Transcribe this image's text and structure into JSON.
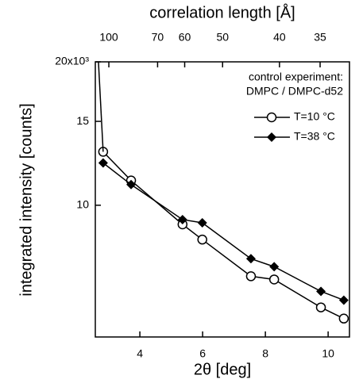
{
  "chart_data": {
    "type": "line",
    "title": "correlation length  [Å]",
    "x_label": "2θ [deg]",
    "y_label": "integrated intensity  [counts]",
    "legend_title": [
      "control experiment:",
      "DMPC / DMPC-d52"
    ],
    "legend": "upper right",
    "xlim": [
      2.58,
      10.68
    ],
    "xticks": [
      4,
      6,
      8,
      10
    ],
    "x2lim": [
      113.5,
      32.1
    ],
    "x2scale": "reciprocal",
    "x2ticks": [
      100,
      70,
      60,
      50,
      40,
      35
    ],
    "ylim": [
      5290,
      20000
    ],
    "yscale": "log",
    "yticks": [
      {
        "value": 10000,
        "label": "10"
      },
      {
        "value": 15000,
        "label": "15"
      },
      {
        "value": 20000,
        "label": "20x10³"
      }
    ],
    "series": [
      {
        "name": "T=10 °C",
        "color": "#000000",
        "marker": "circle",
        "x": [
          2.83,
          3.72,
          5.36,
          5.99,
          7.54,
          8.28,
          9.77,
          10.5
        ],
        "values": [
          12950,
          11270,
          9116,
          8470,
          7095,
          6985,
          6103,
          5782
        ]
      },
      {
        "name": "T=38 °C",
        "color": "#000000",
        "marker": "diamond",
        "x": [
          2.83,
          3.72,
          5.36,
          5.99,
          7.54,
          8.28,
          9.77,
          10.5
        ],
        "values": [
          12270,
          11050,
          9330,
          9187,
          7722,
          7430,
          6595,
          6320
        ]
      },
      {
        "color": "#000000",
        "marker": "none",
        "x": [
          2.68,
          2.83
        ],
        "values": [
          20000,
          12950
        ]
      }
    ]
  }
}
